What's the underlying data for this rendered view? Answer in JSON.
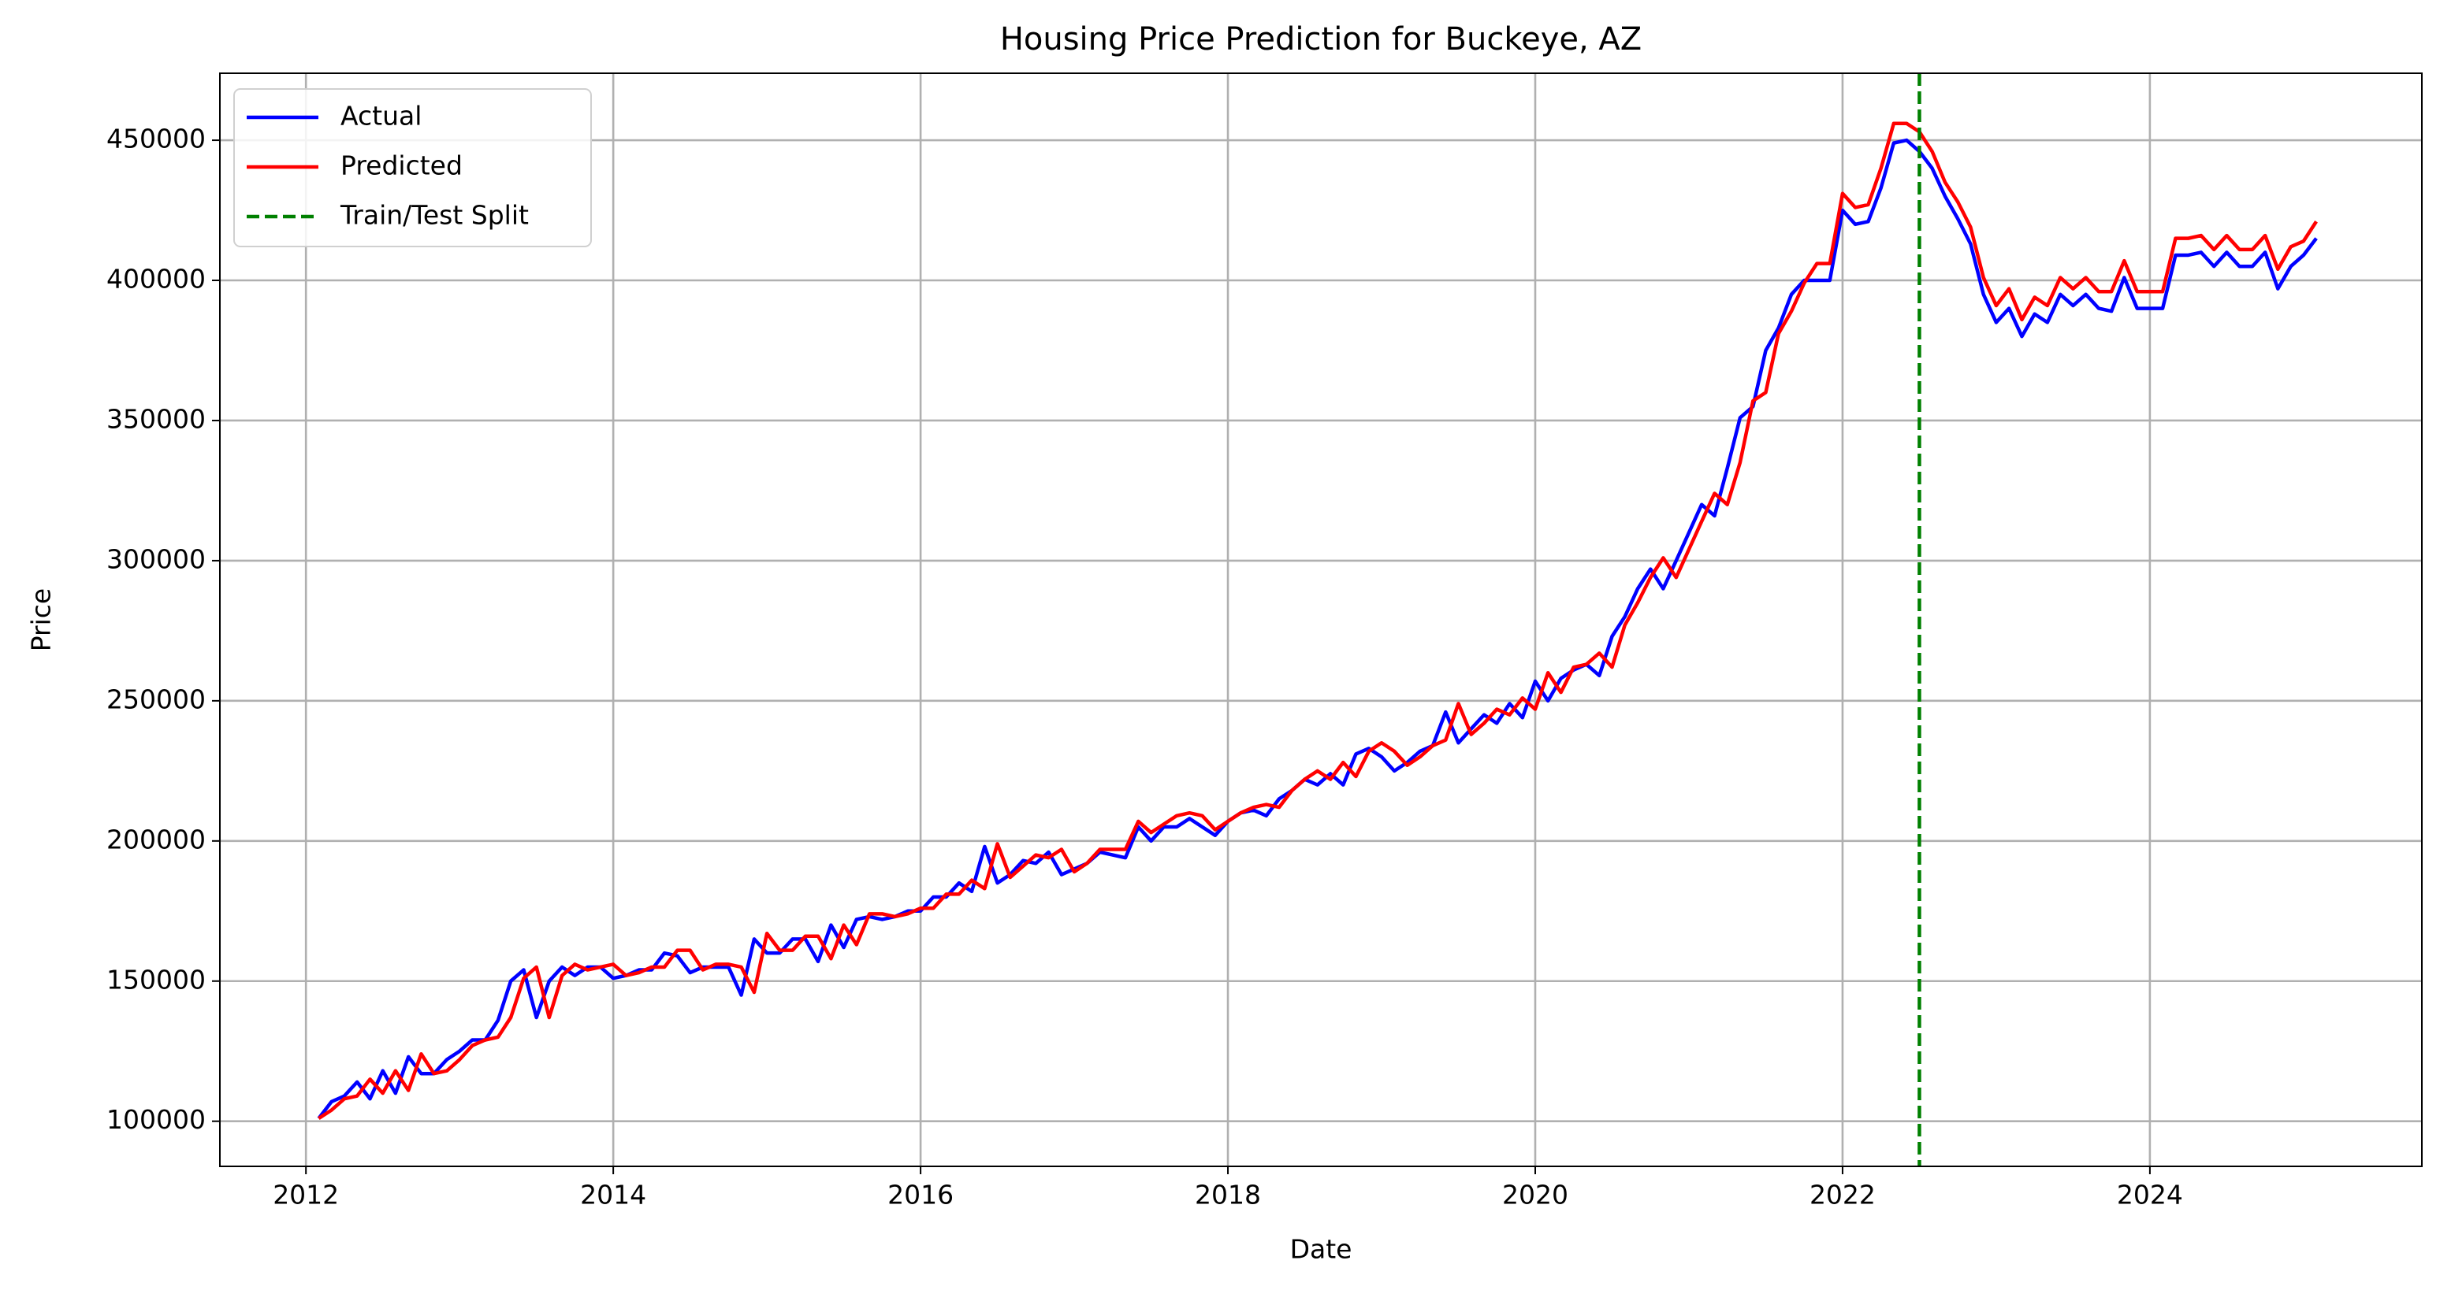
{
  "chart_data": {
    "type": "line",
    "title": "Housing Price Prediction for Buckeye, AZ",
    "x_label": "Date",
    "y_label": "Price",
    "x": [
      2012.083,
      2012.167,
      2012.25,
      2012.333,
      2012.417,
      2012.5,
      2012.583,
      2012.667,
      2012.75,
      2012.833,
      2012.917,
      2013,
      2013.083,
      2013.167,
      2013.25,
      2013.333,
      2013.417,
      2013.5,
      2013.583,
      2013.667,
      2013.75,
      2013.833,
      2013.917,
      2014,
      2014.083,
      2014.167,
      2014.25,
      2014.333,
      2014.417,
      2014.5,
      2014.583,
      2014.667,
      2014.75,
      2014.833,
      2014.917,
      2015,
      2015.083,
      2015.167,
      2015.25,
      2015.333,
      2015.417,
      2015.5,
      2015.583,
      2015.667,
      2015.75,
      2015.833,
      2015.917,
      2016,
      2016.083,
      2016.167,
      2016.25,
      2016.333,
      2016.417,
      2016.5,
      2016.583,
      2016.667,
      2016.75,
      2016.833,
      2016.917,
      2017,
      2017.083,
      2017.167,
      2017.25,
      2017.333,
      2017.417,
      2017.5,
      2017.583,
      2017.667,
      2017.75,
      2017.833,
      2017.917,
      2018,
      2018.083,
      2018.167,
      2018.25,
      2018.333,
      2018.417,
      2018.5,
      2018.583,
      2018.667,
      2018.75,
      2018.833,
      2018.917,
      2019,
      2019.083,
      2019.167,
      2019.25,
      2019.333,
      2019.417,
      2019.5,
      2019.583,
      2019.667,
      2019.75,
      2019.833,
      2019.917,
      2020,
      2020.083,
      2020.167,
      2020.25,
      2020.333,
      2020.417,
      2020.5,
      2020.583,
      2020.667,
      2020.75,
      2020.833,
      2020.917,
      2021,
      2021.083,
      2021.167,
      2021.25,
      2021.333,
      2021.417,
      2021.5,
      2021.583,
      2021.667,
      2021.75,
      2021.833,
      2021.917,
      2022,
      2022.083,
      2022.167,
      2022.25,
      2022.333,
      2022.417,
      2022.5,
      2022.583,
      2022.667,
      2022.75,
      2022.833,
      2022.917,
      2023,
      2023.083,
      2023.167,
      2023.25,
      2023.333,
      2023.417,
      2023.5,
      2023.583,
      2023.667,
      2023.75,
      2023.833,
      2023.917,
      2024,
      2024.083,
      2024.167,
      2024.25,
      2024.333,
      2024.417,
      2024.5,
      2024.583,
      2024.667,
      2024.75,
      2024.833,
      2024.917,
      2025,
      2025.083
    ],
    "series": [
      {
        "name": "Actual",
        "color": "#0000ff",
        "values": [
          101000,
          107000,
          109000,
          114000,
          108000,
          118000,
          110000,
          123000,
          117000,
          117000,
          122000,
          125000,
          129000,
          129000,
          136000,
          150000,
          154000,
          137000,
          150000,
          155000,
          152000,
          155000,
          155000,
          151000,
          152000,
          154000,
          154000,
          160000,
          159000,
          153000,
          155000,
          155000,
          155000,
          145000,
          165000,
          160000,
          160000,
          165000,
          165000,
          157000,
          170000,
          162000,
          172000,
          173000,
          172000,
          173000,
          175000,
          175000,
          180000,
          180000,
          185000,
          182000,
          198000,
          185000,
          188000,
          193000,
          192000,
          196000,
          188000,
          190000,
          192000,
          196000,
          195000,
          194000,
          205000,
          200000,
          205000,
          205000,
          208000,
          205000,
          202000,
          207000,
          210000,
          211000,
          209000,
          215000,
          218000,
          222000,
          220000,
          224000,
          220000,
          231000,
          233000,
          230000,
          225000,
          228000,
          232000,
          234000,
          246000,
          235000,
          240000,
          245000,
          242000,
          249000,
          244000,
          257000,
          250000,
          258000,
          261000,
          263000,
          259000,
          273000,
          280000,
          290000,
          297000,
          290000,
          300000,
          310000,
          320000,
          316000,
          333000,
          351000,
          355000,
          375000,
          383000,
          395000,
          400000,
          400000,
          400000,
          425000,
          420000,
          421000,
          433000,
          449000,
          450000,
          446000,
          440000,
          430000,
          422000,
          413000,
          395000,
          385000,
          390000,
          380000,
          388000,
          385000,
          395000,
          391000,
          395000,
          390000,
          389000,
          401000,
          390000,
          390000,
          390000,
          409000,
          409000,
          410000,
          405000,
          410000,
          405000,
          405000,
          410000,
          397000,
          405000,
          409000,
          415000
        ]
      },
      {
        "name": "Predicted",
        "color": "#ff0000",
        "values": [
          101000,
          104000,
          108000,
          109000,
          115000,
          110000,
          118000,
          111000,
          124000,
          117000,
          118000,
          122000,
          127000,
          129000,
          130000,
          137000,
          151000,
          155000,
          137000,
          152000,
          156000,
          154000,
          155000,
          156000,
          152000,
          153000,
          155000,
          155000,
          161000,
          161000,
          154000,
          156000,
          156000,
          155000,
          146000,
          167000,
          161000,
          161000,
          166000,
          166000,
          158000,
          170000,
          163000,
          174000,
          174000,
          173000,
          174000,
          176000,
          176000,
          181000,
          181000,
          186000,
          183000,
          199000,
          187000,
          191000,
          195000,
          194000,
          197000,
          189000,
          192000,
          197000,
          197000,
          197000,
          207000,
          203000,
          206000,
          209000,
          210000,
          209000,
          204000,
          207000,
          210000,
          212000,
          213000,
          212000,
          218000,
          222000,
          225000,
          222000,
          228000,
          223000,
          232000,
          235000,
          232000,
          227000,
          230000,
          234000,
          236000,
          249000,
          238000,
          242000,
          247000,
          245000,
          251000,
          247000,
          260000,
          253000,
          262000,
          263000,
          267000,
          262000,
          277000,
          285000,
          294000,
          301000,
          294000,
          304000,
          314000,
          324000,
          320000,
          335000,
          357000,
          360000,
          381000,
          389000,
          399000,
          406000,
          406000,
          431000,
          426000,
          427000,
          440000,
          456000,
          456000,
          453000,
          446000,
          435000,
          428000,
          419000,
          401000,
          391000,
          397000,
          386000,
          394000,
          391000,
          401000,
          397000,
          401000,
          396000,
          396000,
          407000,
          396000,
          396000,
          396000,
          415000,
          415000,
          416000,
          411000,
          416000,
          411000,
          411000,
          416000,
          404000,
          412000,
          414000,
          421000
        ]
      }
    ],
    "split": {
      "name": "Train/Test Split",
      "x": 2022.5,
      "color": "#008000"
    },
    "xlim": [
      2011.44,
      2025.77
    ],
    "xticks": [
      2012,
      2014,
      2016,
      2018,
      2020,
      2022,
      2024
    ],
    "ylim": [
      83900,
      473900
    ],
    "yticks": [
      100000,
      150000,
      200000,
      250000,
      300000,
      350000,
      400000,
      450000
    ],
    "grid": true,
    "legend": "upper left"
  }
}
